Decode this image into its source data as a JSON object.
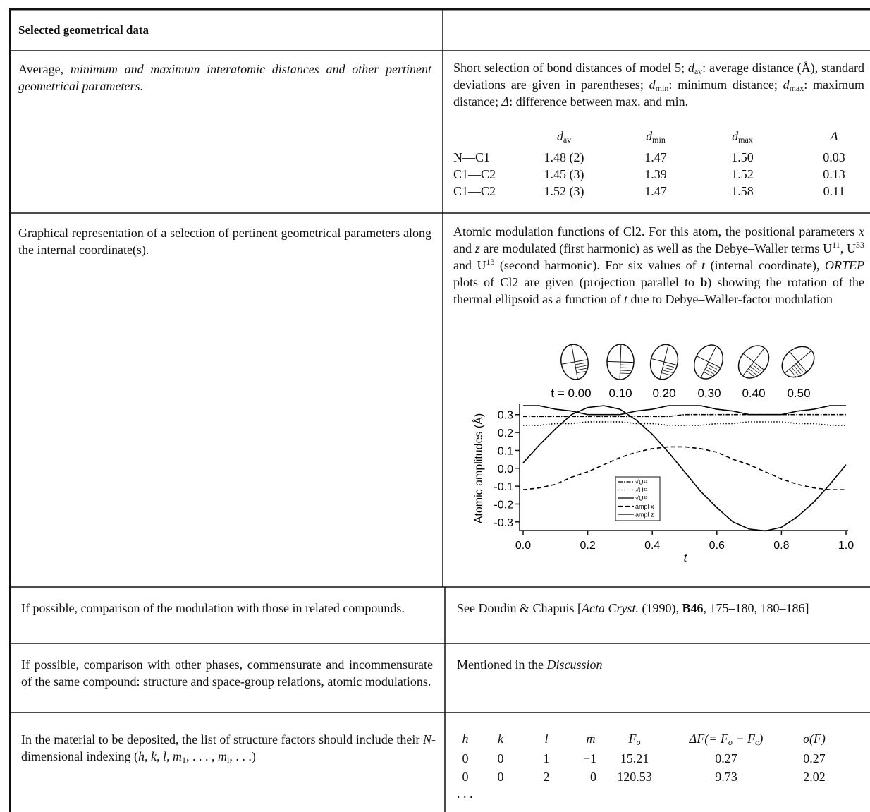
{
  "header": {
    "title": "Selected geometrical data"
  },
  "rows": [
    {
      "left": [
        "Average, ",
        "minimum and maximum interatomic distances and other pertinent geometrical parameters",
        "."
      ],
      "right": [
        "Short selection of bond distances of model 5; ",
        "d",
        "av",
        ": average distance (Å), standard deviations are given in parentheses; ",
        "d",
        "min",
        ": minimum distance; ",
        "d",
        "max",
        ": maximum distance; ",
        "Δ",
        ": difference between max. and min."
      ],
      "table": {
        "header": [
          [
            "d",
            "av"
          ],
          [
            "d",
            "min"
          ],
          [
            "d",
            "max"
          ],
          [
            "Δ"
          ]
        ],
        "rows": [
          [
            "N—C1",
            "1.48 (2)",
            "1.47",
            "1.50",
            "0.03"
          ],
          [
            "C1—C2",
            "1.45 (3)",
            "1.39",
            "1.52",
            "0.13"
          ],
          [
            "C1—C2",
            "1.52 (3)",
            "1.47",
            "1.58",
            "0.11"
          ]
        ]
      }
    },
    {
      "left": [
        "Graphical representation of a selection of pertinent geometrical parameters along the internal coordinate(s)."
      ],
      "right": [
        "Atomic modulation functions of Cl2. For this atom, the positional parameters ",
        "x",
        " and ",
        "z",
        " are modulated (first harmonic) as well as the Debye–Waller terms U",
        "11",
        ", U",
        "33",
        " and U",
        "13",
        " (second harmonic). For six values of ",
        "t",
        " (internal coordinate), ",
        "ORTEP",
        " plots of Cl2 are given (projection parallel to ",
        "b",
        ") showing the rotation of the thermal ellipsoid as a function of ",
        "t",
        " due to Debye–Waller-factor modulation"
      ]
    },
    {
      "left": [
        "If possible, comparison of the modulation with those in related compounds."
      ],
      "right": [
        "See Doudin & Chapuis [",
        "Acta Cryst.",
        " (1990), ",
        "B46",
        ", 175–180, 180–186]"
      ]
    },
    {
      "left": [
        "If possible, comparison with other phases, commensurate and incommensurate of the same compound: structure and space-group relations, atomic modulations."
      ],
      "right": [
        "Mentioned in the ",
        "Discussion"
      ]
    },
    {
      "left": [
        "In the material to be deposited, the list of structure factors should include their ",
        "N",
        "-dimensional indexing (",
        "h, k, l, m",
        "1",
        ", . . . , ",
        "m",
        "i",
        ", . . .)"
      ],
      "table": {
        "header": [
          [
            "h"
          ],
          [
            "k"
          ],
          [
            "l"
          ],
          [
            "m"
          ],
          [
            "F",
            "o"
          ],
          [
            "ΔF(= F",
            "o",
            " − F",
            "c",
            ")"
          ],
          [
            "σ(F)"
          ]
        ],
        "rows": [
          [
            "0",
            "0",
            "1",
            "−1",
            "15.21",
            "0.27",
            "0.27"
          ],
          [
            "0",
            "0",
            "2",
            "0",
            "120.53",
            "9.73",
            "2.02"
          ]
        ],
        "ellipsis": ". . ."
      }
    }
  ],
  "chart_data": {
    "type": "line",
    "annotations": [
      "t = 0.00",
      "0.10",
      "0.20",
      "0.30",
      "0.40",
      "0.50"
    ],
    "xlabel": "t",
    "ylabel": "Atomic amplitudes (Å)",
    "x": [
      0,
      0.05,
      0.1,
      0.15,
      0.2,
      0.25,
      0.3,
      0.35,
      0.4,
      0.45,
      0.5,
      0.55,
      0.6,
      0.65,
      0.7,
      0.75,
      0.8,
      0.85,
      0.9,
      0.95,
      1
    ],
    "xlim": [
      0,
      1
    ],
    "ylim": [
      -0.36,
      0.37
    ],
    "xticks": [
      {
        "value": 0,
        "label": "0.0"
      },
      0.2,
      0.4,
      0.6,
      0.8,
      {
        "value": 1,
        "label": "1.0"
      }
    ],
    "yticks": [
      0.3,
      0.2,
      0.1,
      {
        "value": 0,
        "label": "0.0"
      },
      -0.1,
      -0.2,
      -0.3
    ],
    "series": [
      {
        "name": "√U¹¹",
        "color": "#000",
        "dash": "dashdot",
        "values": [
          0.29,
          0.29,
          0.29,
          0.29,
          0.29,
          0.29,
          0.29,
          0.29,
          0.29,
          0.29,
          0.3,
          0.3,
          0.3,
          0.3,
          0.3,
          0.3,
          0.3,
          0.3,
          0.3,
          0.3,
          0.3
        ]
      },
      {
        "name": "√U²²",
        "color": "#000",
        "dash": "dotted",
        "values": [
          0.24,
          0.24,
          0.25,
          0.25,
          0.26,
          0.26,
          0.26,
          0.25,
          0.25,
          0.24,
          0.24,
          0.24,
          0.25,
          0.25,
          0.26,
          0.26,
          0.26,
          0.25,
          0.25,
          0.24,
          0.24
        ]
      },
      {
        "name": "√U³³",
        "color": "#000",
        "dash": "solid",
        "values": [
          0.35,
          0.35,
          0.33,
          0.32,
          0.3,
          0.3,
          0.3,
          0.32,
          0.33,
          0.35,
          0.35,
          0.35,
          0.33,
          0.32,
          0.3,
          0.3,
          0.3,
          0.32,
          0.33,
          0.35,
          0.35
        ]
      },
      {
        "name": "ampl x",
        "color": "#000",
        "dash": "dashed",
        "values": [
          -0.12,
          -0.11,
          -0.09,
          -0.05,
          -0.02,
          0.02,
          0.06,
          0.09,
          0.11,
          0.12,
          0.12,
          0.11,
          0.09,
          0.05,
          0.02,
          -0.02,
          -0.06,
          -0.09,
          -0.11,
          -0.12,
          -0.12
        ]
      },
      {
        "name": "ampl z",
        "color": "#000",
        "dash": "solid",
        "values": [
          0.03,
          0.13,
          0.22,
          0.3,
          0.34,
          0.35,
          0.33,
          0.27,
          0.19,
          0.09,
          -0.02,
          -0.13,
          -0.22,
          -0.3,
          -0.34,
          -0.35,
          -0.33,
          -0.27,
          -0.19,
          -0.09,
          0.02
        ]
      }
    ]
  }
}
